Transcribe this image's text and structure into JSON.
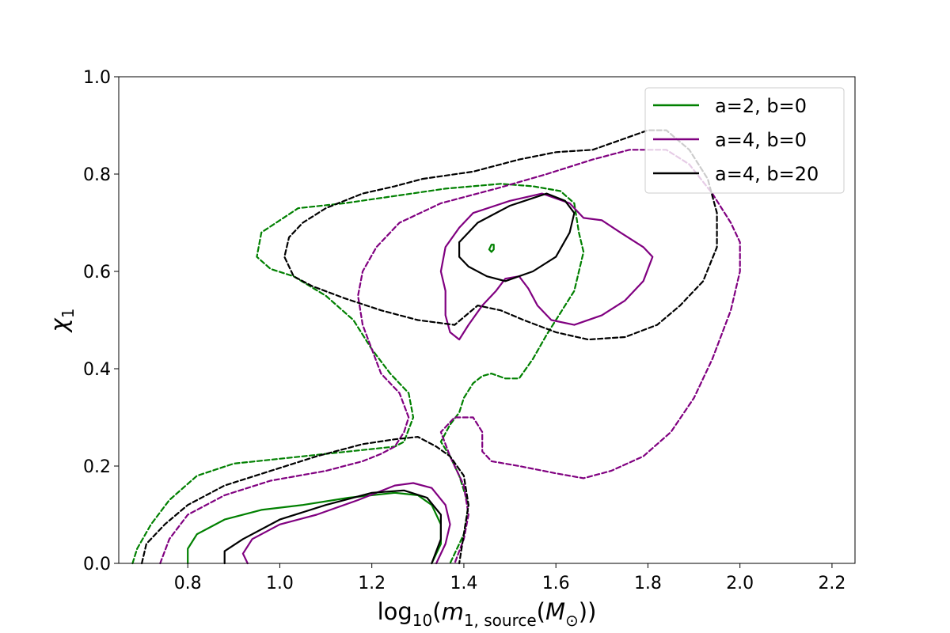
{
  "chart_data": {
    "type": "contour",
    "xlabel_parts": [
      "log",
      "10",
      "(",
      "m",
      "1, source",
      "(",
      "M",
      "⊙",
      "))"
    ],
    "ylabel_parts": [
      "χ",
      "1"
    ],
    "xlim": [
      0.65,
      2.25
    ],
    "ylim": [
      0.0,
      1.0
    ],
    "xticks": [
      "0.8",
      "1.0",
      "1.2",
      "1.4",
      "1.6",
      "1.8",
      "2.0",
      "2.2"
    ],
    "yticks": [
      "0.0",
      "0.2",
      "0.4",
      "0.6",
      "0.8",
      "1.0"
    ],
    "legend_position": "top-right",
    "grid": false,
    "series": [
      {
        "name": "a=2, b=0",
        "color": "#008000",
        "contours": [
          {
            "style": "solid",
            "points": [
              [
                0.8,
                0.0
              ],
              [
                0.8,
                0.03
              ],
              [
                0.82,
                0.06
              ],
              [
                0.88,
                0.09
              ],
              [
                0.96,
                0.11
              ],
              [
                1.05,
                0.12
              ],
              [
                1.15,
                0.135
              ],
              [
                1.25,
                0.145
              ],
              [
                1.3,
                0.14
              ],
              [
                1.33,
                0.12
              ],
              [
                1.35,
                0.08
              ],
              [
                1.35,
                0.04
              ],
              [
                1.33,
                0.0
              ]
            ]
          },
          {
            "style": "solid",
            "points": [
              [
                1.455,
                0.645
              ],
              [
                1.46,
                0.655
              ],
              [
                1.465,
                0.655
              ],
              [
                1.465,
                0.645
              ],
              [
                1.46,
                0.64
              ],
              [
                1.455,
                0.645
              ]
            ]
          },
          {
            "style": "dashed",
            "points": [
              [
                0.68,
                0.0
              ],
              [
                0.69,
                0.03
              ],
              [
                0.72,
                0.08
              ],
              [
                0.76,
                0.13
              ],
              [
                0.82,
                0.18
              ],
              [
                0.9,
                0.205
              ],
              [
                1.0,
                0.215
              ],
              [
                1.1,
                0.225
              ],
              [
                1.2,
                0.235
              ],
              [
                1.25,
                0.24
              ],
              [
                1.27,
                0.25
              ],
              [
                1.29,
                0.3
              ],
              [
                1.28,
                0.35
              ],
              [
                1.24,
                0.39
              ],
              [
                1.2,
                0.44
              ],
              [
                1.16,
                0.5
              ],
              [
                1.1,
                0.55
              ],
              [
                1.03,
                0.59
              ],
              [
                0.98,
                0.605
              ],
              [
                0.95,
                0.63
              ],
              [
                0.96,
                0.68
              ],
              [
                1.04,
                0.73
              ],
              [
                1.14,
                0.74
              ],
              [
                1.25,
                0.755
              ],
              [
                1.36,
                0.77
              ],
              [
                1.48,
                0.78
              ],
              [
                1.55,
                0.775
              ],
              [
                1.61,
                0.765
              ],
              [
                1.64,
                0.74
              ],
              [
                1.65,
                0.68
              ],
              [
                1.66,
                0.64
              ],
              [
                1.64,
                0.56
              ],
              [
                1.6,
                0.5
              ],
              [
                1.58,
                0.47
              ],
              [
                1.55,
                0.42
              ],
              [
                1.52,
                0.38
              ],
              [
                1.49,
                0.38
              ],
              [
                1.46,
                0.39
              ],
              [
                1.44,
                0.385
              ],
              [
                1.42,
                0.37
              ],
              [
                1.4,
                0.34
              ],
              [
                1.39,
                0.31
              ],
              [
                1.37,
                0.285
              ],
              [
                1.35,
                0.25
              ],
              [
                1.37,
                0.22
              ],
              [
                1.39,
                0.18
              ],
              [
                1.41,
                0.12
              ],
              [
                1.4,
                0.06
              ],
              [
                1.37,
                0.0
              ]
            ]
          }
        ]
      },
      {
        "name": "a=4, b=0",
        "color": "#800080",
        "contours": [
          {
            "style": "solid",
            "points": [
              [
                0.93,
                0.0
              ],
              [
                0.92,
                0.02
              ],
              [
                0.94,
                0.05
              ],
              [
                1.0,
                0.08
              ],
              [
                1.08,
                0.1
              ],
              [
                1.17,
                0.13
              ],
              [
                1.25,
                0.16
              ],
              [
                1.29,
                0.165
              ],
              [
                1.33,
                0.155
              ],
              [
                1.36,
                0.12
              ],
              [
                1.37,
                0.08
              ],
              [
                1.36,
                0.04
              ],
              [
                1.34,
                0.0
              ]
            ]
          },
          {
            "style": "solid",
            "points": [
              [
                1.39,
                0.69
              ],
              [
                1.42,
                0.72
              ],
              [
                1.5,
                0.745
              ],
              [
                1.57,
                0.76
              ],
              [
                1.63,
                0.74
              ],
              [
                1.66,
                0.71
              ],
              [
                1.7,
                0.705
              ],
              [
                1.74,
                0.68
              ],
              [
                1.79,
                0.65
              ],
              [
                1.81,
                0.63
              ],
              [
                1.79,
                0.58
              ],
              [
                1.75,
                0.54
              ],
              [
                1.7,
                0.51
              ],
              [
                1.64,
                0.49
              ],
              [
                1.59,
                0.5
              ],
              [
                1.56,
                0.53
              ],
              [
                1.54,
                0.565
              ],
              [
                1.52,
                0.59
              ],
              [
                1.49,
                0.585
              ],
              [
                1.47,
                0.56
              ],
              [
                1.44,
                0.53
              ],
              [
                1.41,
                0.49
              ],
              [
                1.39,
                0.46
              ],
              [
                1.37,
                0.475
              ],
              [
                1.36,
                0.51
              ],
              [
                1.36,
                0.56
              ],
              [
                1.35,
                0.6
              ],
              [
                1.36,
                0.65
              ],
              [
                1.39,
                0.69
              ]
            ]
          },
          {
            "style": "dashed",
            "points": [
              [
                0.74,
                0.0
              ],
              [
                0.76,
                0.05
              ],
              [
                0.8,
                0.1
              ],
              [
                0.88,
                0.14
              ],
              [
                0.98,
                0.17
              ],
              [
                1.1,
                0.19
              ],
              [
                1.18,
                0.21
              ],
              [
                1.22,
                0.225
              ],
              [
                1.25,
                0.24
              ],
              [
                1.27,
                0.27
              ],
              [
                1.28,
                0.3
              ],
              [
                1.26,
                0.35
              ],
              [
                1.22,
                0.39
              ],
              [
                1.2,
                0.44
              ],
              [
                1.18,
                0.49
              ],
              [
                1.17,
                0.55
              ],
              [
                1.18,
                0.6
              ],
              [
                1.21,
                0.65
              ],
              [
                1.26,
                0.7
              ],
              [
                1.35,
                0.74
              ],
              [
                1.47,
                0.77
              ],
              [
                1.58,
                0.8
              ],
              [
                1.68,
                0.83
              ],
              [
                1.76,
                0.85
              ],
              [
                1.84,
                0.85
              ],
              [
                1.89,
                0.82
              ],
              [
                1.94,
                0.76
              ],
              [
                1.98,
                0.7
              ],
              [
                2.0,
                0.66
              ],
              [
                2.0,
                0.6
              ],
              [
                1.98,
                0.52
              ],
              [
                1.94,
                0.42
              ],
              [
                1.9,
                0.34
              ],
              [
                1.85,
                0.27
              ],
              [
                1.79,
                0.22
              ],
              [
                1.72,
                0.19
              ],
              [
                1.66,
                0.175
              ],
              [
                1.6,
                0.185
              ],
              [
                1.52,
                0.2
              ],
              [
                1.46,
                0.21
              ],
              [
                1.44,
                0.23
              ],
              [
                1.44,
                0.27
              ],
              [
                1.42,
                0.3
              ],
              [
                1.38,
                0.3
              ],
              [
                1.35,
                0.27
              ],
              [
                1.37,
                0.22
              ],
              [
                1.4,
                0.16
              ],
              [
                1.41,
                0.1
              ],
              [
                1.4,
                0.05
              ],
              [
                1.38,
                0.0
              ]
            ]
          }
        ]
      },
      {
        "name": "a=4, b=20",
        "color": "#000000",
        "contours": [
          {
            "style": "solid",
            "points": [
              [
                0.88,
                0.0
              ],
              [
                0.88,
                0.025
              ],
              [
                0.92,
                0.05
              ],
              [
                1.0,
                0.09
              ],
              [
                1.1,
                0.12
              ],
              [
                1.2,
                0.145
              ],
              [
                1.27,
                0.15
              ],
              [
                1.32,
                0.135
              ],
              [
                1.35,
                0.1
              ],
              [
                1.35,
                0.05
              ],
              [
                1.33,
                0.0
              ]
            ]
          },
          {
            "style": "solid",
            "points": [
              [
                1.39,
                0.66
              ],
              [
                1.43,
                0.7
              ],
              [
                1.5,
                0.735
              ],
              [
                1.58,
                0.76
              ],
              [
                1.62,
                0.745
              ],
              [
                1.64,
                0.72
              ],
              [
                1.63,
                0.68
              ],
              [
                1.6,
                0.63
              ],
              [
                1.55,
                0.6
              ],
              [
                1.49,
                0.58
              ],
              [
                1.45,
                0.59
              ],
              [
                1.41,
                0.61
              ],
              [
                1.39,
                0.63
              ],
              [
                1.39,
                0.66
              ]
            ]
          },
          {
            "style": "dashed",
            "points": [
              [
                0.7,
                0.0
              ],
              [
                0.71,
                0.04
              ],
              [
                0.75,
                0.08
              ],
              [
                0.8,
                0.12
              ],
              [
                0.88,
                0.16
              ],
              [
                0.98,
                0.19
              ],
              [
                1.08,
                0.22
              ],
              [
                1.18,
                0.245
              ],
              [
                1.25,
                0.255
              ],
              [
                1.3,
                0.26
              ],
              [
                1.34,
                0.24
              ],
              [
                1.37,
                0.22
              ],
              [
                1.4,
                0.18
              ],
              [
                1.41,
                0.12
              ],
              [
                1.4,
                0.06
              ],
              [
                1.39,
                0.0
              ]
            ]
          },
          {
            "style": "dashed",
            "points": [
              [
                1.31,
                0.79
              ],
              [
                1.42,
                0.805
              ],
              [
                1.52,
                0.83
              ],
              [
                1.6,
                0.845
              ],
              [
                1.68,
                0.85
              ],
              [
                1.74,
                0.87
              ],
              [
                1.8,
                0.89
              ],
              [
                1.84,
                0.89
              ],
              [
                1.89,
                0.85
              ],
              [
                1.93,
                0.79
              ],
              [
                1.95,
                0.72
              ],
              [
                1.95,
                0.65
              ],
              [
                1.92,
                0.58
              ],
              [
                1.87,
                0.53
              ],
              [
                1.82,
                0.49
              ],
              [
                1.75,
                0.465
              ],
              [
                1.67,
                0.46
              ],
              [
                1.6,
                0.475
              ],
              [
                1.53,
                0.5
              ],
              [
                1.48,
                0.52
              ],
              [
                1.43,
                0.53
              ],
              [
                1.38,
                0.49
              ],
              [
                1.3,
                0.5
              ],
              [
                1.22,
                0.52
              ],
              [
                1.14,
                0.545
              ],
              [
                1.07,
                0.57
              ],
              [
                1.03,
                0.59
              ],
              [
                1.01,
                0.63
              ],
              [
                1.02,
                0.67
              ],
              [
                1.05,
                0.7
              ],
              [
                1.1,
                0.73
              ],
              [
                1.18,
                0.76
              ],
              [
                1.25,
                0.775
              ],
              [
                1.31,
                0.79
              ]
            ]
          }
        ]
      }
    ]
  }
}
